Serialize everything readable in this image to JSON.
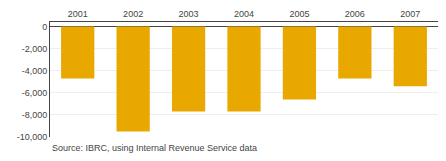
{
  "chart_data": {
    "type": "bar",
    "categories": [
      "2001",
      "2002",
      "2003",
      "2004",
      "2005",
      "2006",
      "2007"
    ],
    "values": [
      -4700,
      -9500,
      -7700,
      -7700,
      -6600,
      -4700,
      -5400
    ],
    "color": "#E8A800",
    "ylim": [
      -10000,
      400
    ],
    "yticks": [
      0,
      {
        "value": -2000,
        "label": "-2,000"
      },
      {
        "value": -4000,
        "label": "-4,000"
      },
      {
        "value": -6000,
        "label": "-6,000"
      },
      {
        "value": -8000,
        "label": "-8,000"
      },
      {
        "value": -10000,
        "label": "-10,000"
      }
    ],
    "grid": true,
    "annotations": [
      "Source: IBRC, using Internal Revenue Service data"
    ]
  }
}
